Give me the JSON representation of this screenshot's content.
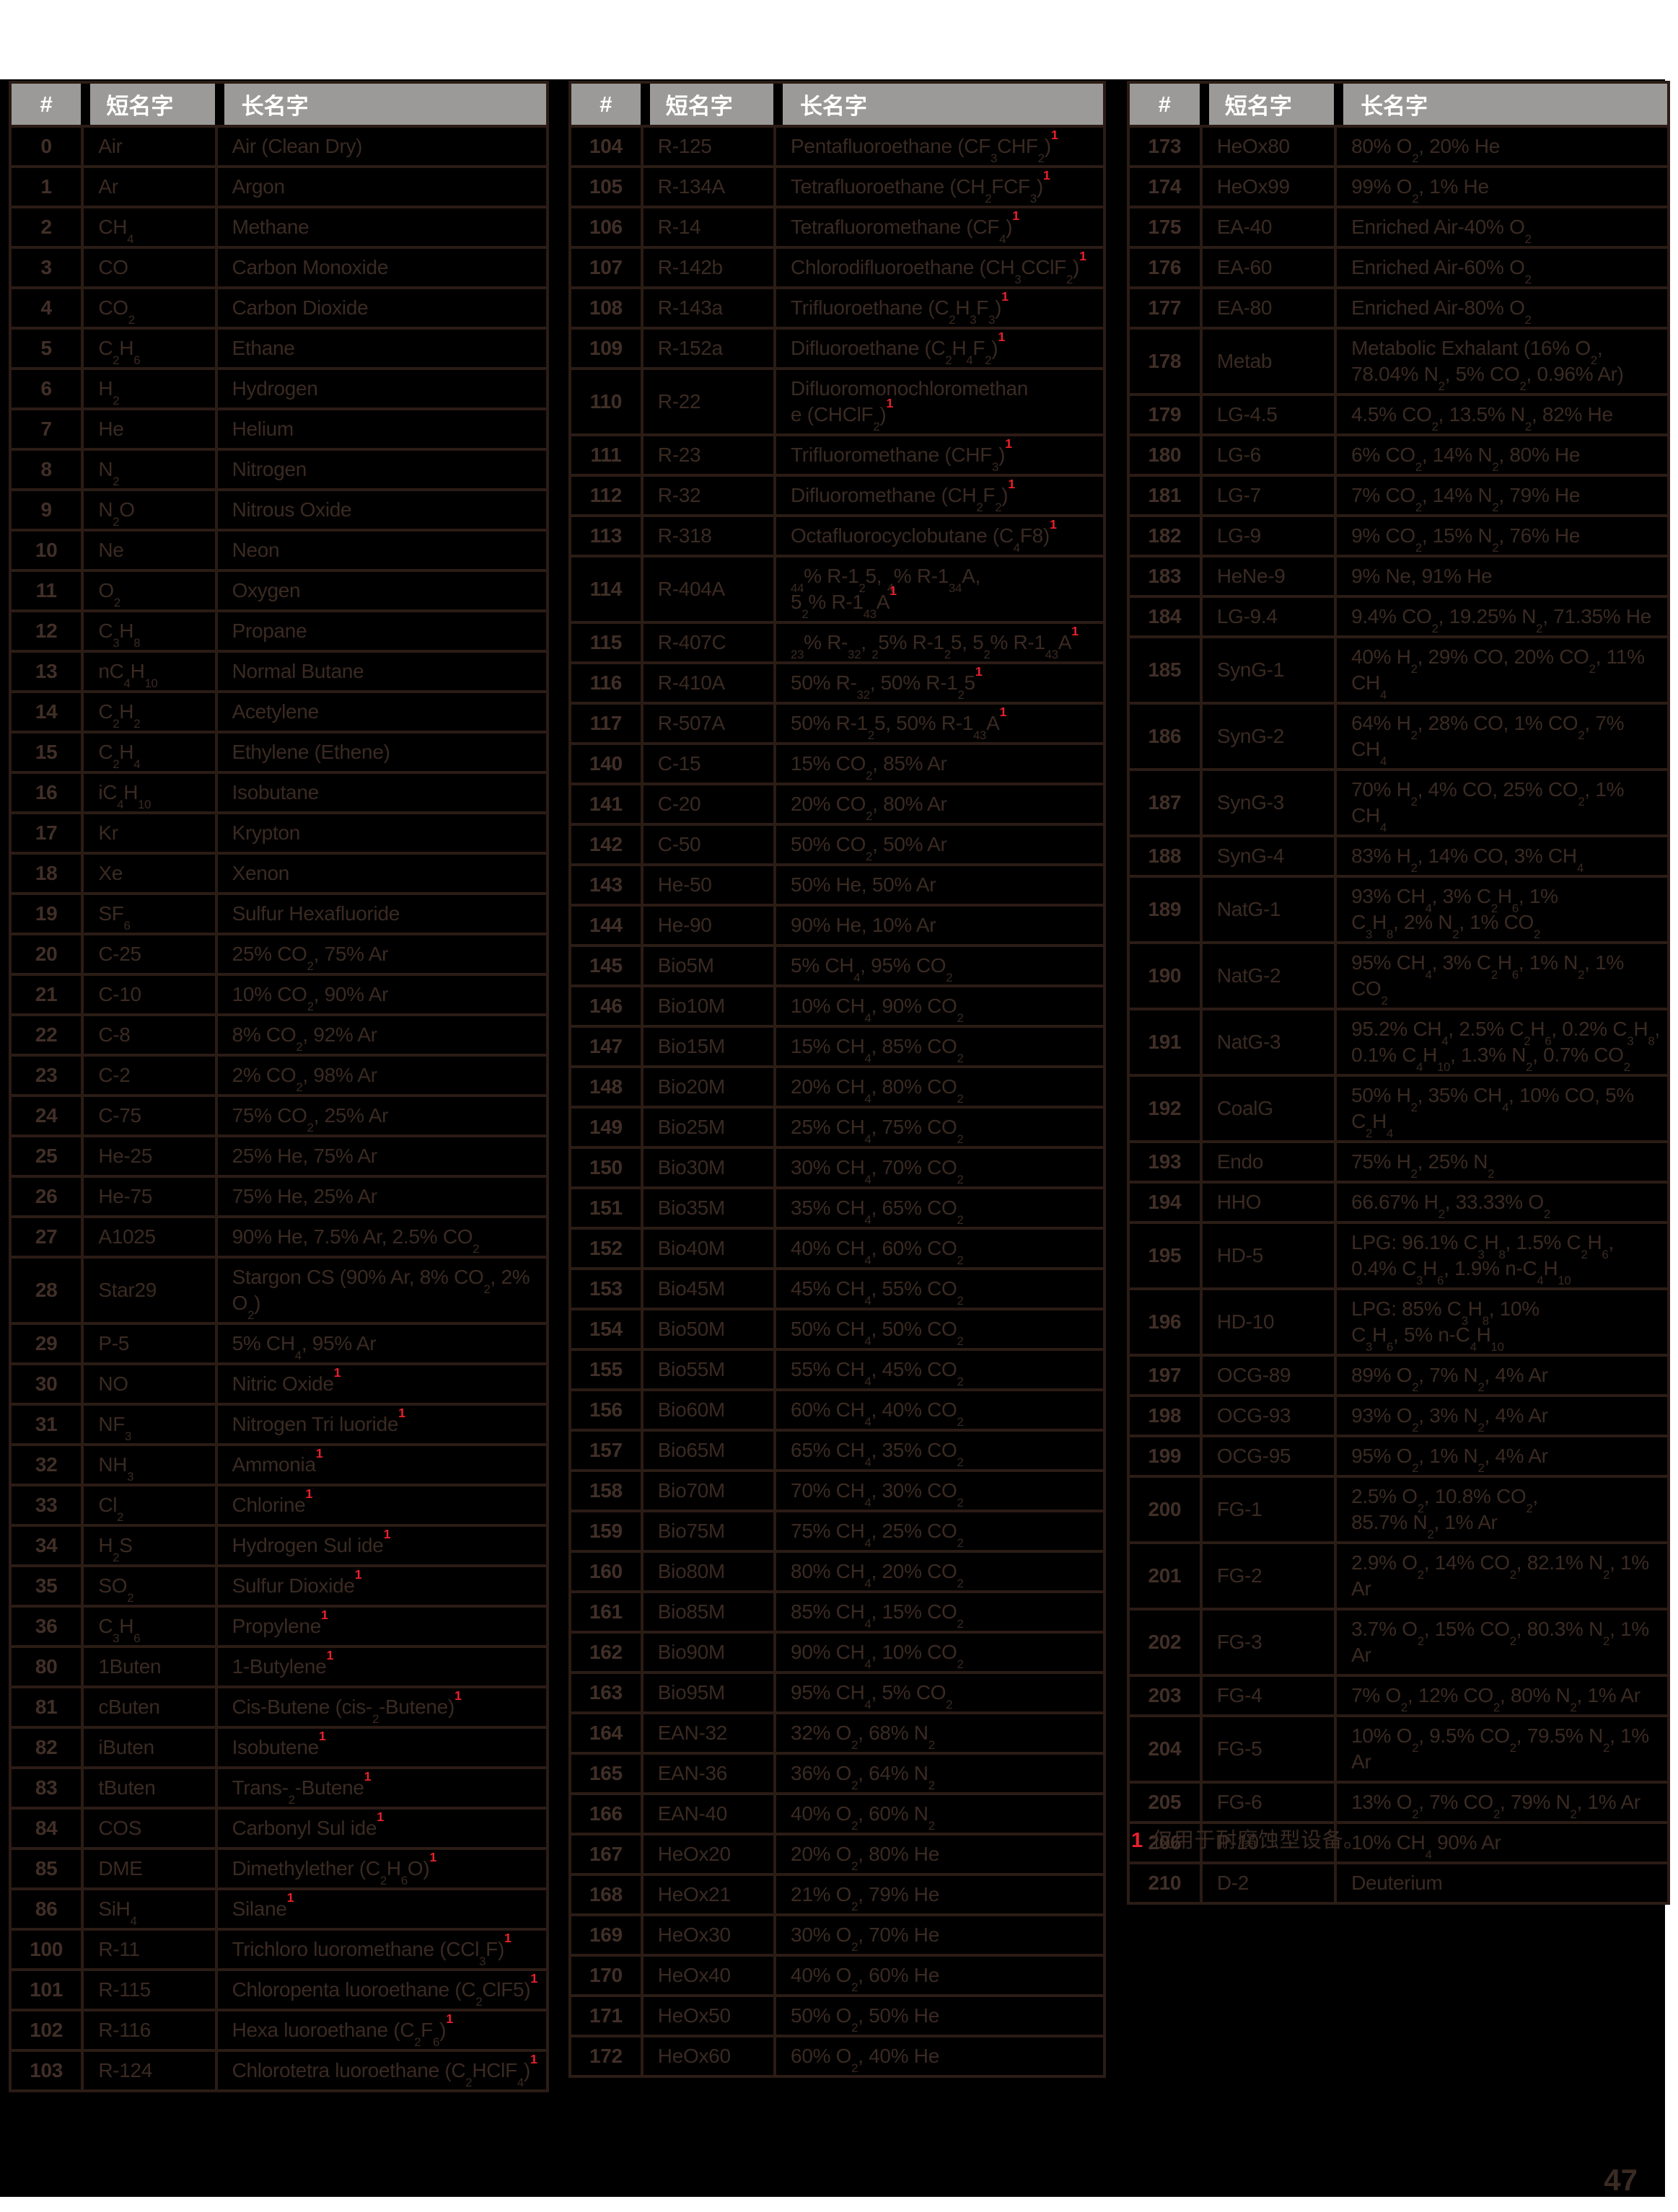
{
  "page": {
    "number": "47"
  },
  "columns": {
    "num": "#",
    "short": "短名字",
    "long": "长名字"
  },
  "footnote": {
    "marker": "1",
    "text": "仅用于耐腐蚀型设备。"
  },
  "colors": {
    "header_bg": "#9b9a98",
    "band_bg": "#000000",
    "line": "#2b1c15",
    "body_text": "#3a2a22",
    "num_text": "#412f27",
    "accent_red": "#e8212b",
    "page_num": "#3a2b23"
  },
  "tables": [
    {
      "rows": [
        [
          "0",
          "Air",
          "Air (Clean Dry)"
        ],
        [
          "1",
          "Ar",
          "Argon"
        ],
        [
          "2",
          "CH~4~",
          "Methane"
        ],
        [
          "3",
          "CO",
          "Carbon Monoxide"
        ],
        [
          "4",
          "CO~2~",
          "Carbon Dioxide"
        ],
        [
          "5",
          "C~2~H~6~",
          "Ethane"
        ],
        [
          "6",
          "H~2~",
          "Hydrogen"
        ],
        [
          "7",
          "He",
          "Helium"
        ],
        [
          "8",
          "N~2~",
          "Nitrogen"
        ],
        [
          "9",
          "N~2~O",
          "Nitrous Oxide"
        ],
        [
          "10",
          "Ne",
          "Neon"
        ],
        [
          "11",
          "O~2~",
          "Oxygen"
        ],
        [
          "12",
          "C~3~H~8~",
          "Propane"
        ],
        [
          "13",
          "nC~4~H~10~",
          "Normal Butane"
        ],
        [
          "14",
          "C~2~H~2~",
          "Acetylene"
        ],
        [
          "15",
          "C~2~H~4~",
          "Ethylene (Ethene)"
        ],
        [
          "16",
          "iC~4~H~10~",
          "Isobutane"
        ],
        [
          "17",
          "Kr",
          "Krypton"
        ],
        [
          "18",
          "Xe",
          "Xenon"
        ],
        [
          "19",
          "SF~6~",
          "Sulfur Hexafluoride"
        ],
        [
          "20",
          "C-25",
          "25% CO~2~, 75% Ar"
        ],
        [
          "21",
          "C-10",
          "10% CO~2~, 90% Ar"
        ],
        [
          "22",
          "C-8",
          "8% CO~2~, 92% Ar"
        ],
        [
          "23",
          "C-2",
          "2% CO~2~, 98% Ar"
        ],
        [
          "24",
          "C-75",
          "75% CO~2~, 25% Ar"
        ],
        [
          "25",
          "He-25",
          "25% He, 75% Ar"
        ],
        [
          "26",
          "He-75",
          "75% He, 25% Ar"
        ],
        [
          "27",
          "A1025",
          "90% He, 7.5% Ar, 2.5% CO~2~"
        ],
        [
          "28",
          "Star29",
          "Stargon CS (90% Ar, 8% CO~2~, 2% O~2~)"
        ],
        [
          "29",
          "P-5",
          "5% CH~4~, 95% Ar"
        ],
        [
          "30",
          "NO",
          "Nitric Oxide^1^"
        ],
        [
          "31",
          "NF~3~",
          "Nitrogen Tri luoride^1^"
        ],
        [
          "32",
          "NH~3~",
          "Ammonia^1^"
        ],
        [
          "33",
          "Cl~2~",
          "Chlorine^1^"
        ],
        [
          "34",
          "H~2~S",
          "Hydrogen Sul ide^1^"
        ],
        [
          "35",
          "SO~2~",
          "Sulfur Dioxide^1^"
        ],
        [
          "36",
          "C~3~H~6~",
          "Propylene^1^"
        ],
        [
          "80",
          "1Buten",
          "1-Butylene^1^"
        ],
        [
          "81",
          "cButen",
          "Cis-Butene (cis-~2~-Butene)^1^"
        ],
        [
          "82",
          "iButen",
          "Isobutene^1^"
        ],
        [
          "83",
          "tButen",
          "Trans-~2~-Butene^1^"
        ],
        [
          "84",
          "COS",
          "Carbonyl Sul ide^1^"
        ],
        [
          "85",
          "DME",
          "Dimethylether (C~2~H~6~O)^1^"
        ],
        [
          "86",
          "SiH~4~",
          "Silane^1^"
        ],
        [
          "100",
          "R-11",
          "Trichloro luoromethane (CCl~3~F)^1^"
        ],
        [
          "101",
          "R-115",
          "Chloropenta luoroethane (C~2~ClF5)^1^"
        ],
        [
          "102",
          "R-116",
          "Hexa luoroethane (C~2~F~6~)^1^"
        ],
        [
          "103",
          "R-124",
          "Chlorotetra luoroethane (C~2~HClF~4~)^1^"
        ]
      ]
    },
    {
      "rows": [
        [
          "104",
          "R-125",
          "Pentafluoroethane (CF~3~CHF~2~)^1^"
        ],
        [
          "105",
          "R-134A",
          "Tetrafluoroethane (CH~2~FCF~3~)^1^"
        ],
        [
          "106",
          "R-14",
          "Tetrafluoromethane (CF~4~)^1^"
        ],
        [
          "107",
          "R-142b",
          "Chlorodifluoroethane (CH~3~CClF~2~)^1^"
        ],
        [
          "108",
          "R-143a",
          "Trifluoroethane (C~2~H~3~F~3~)^1^"
        ],
        [
          "109",
          "R-152a",
          "Difluoroethane (C~2~H~4~F~2~)^1^"
        ],
        [
          "110",
          "R-22",
          "Difluoromonochloromethan\ne (CHClF~2~)^1^"
        ],
        [
          "111",
          "R-23",
          "Trifluoromethane (CHF~3~)^1^"
        ],
        [
          "112",
          "R-32",
          "Difluoromethane (CH~2~F~2~)^1^"
        ],
        [
          "113",
          "R-318",
          "Octafluorocyclobutane (C~4~F8)^1^"
        ],
        [
          "114",
          "R-404A",
          "~44~% R-1~2~5, ~4~% R-1~34~A,\n5~2~% R-1~43~A^1^"
        ],
        [
          "115",
          "R-407C",
          "~23~% R-~32~, ~2~5% R-1~2~5, 5~2~% R-1~43~A^1^"
        ],
        [
          "116",
          "R-410A",
          "50% R-~32~, 50% R-1~2~5^1^"
        ],
        [
          "117",
          "R-507A",
          "50% R-1~2~5, 50% R-1~43~A^1^"
        ],
        [
          "140",
          "C-15",
          "15% CO~2~, 85% Ar"
        ],
        [
          "141",
          "C-20",
          "20% CO~2~, 80% Ar"
        ],
        [
          "142",
          "C-50",
          "50% CO~2~, 50% Ar"
        ],
        [
          "143",
          "He-50",
          "50% He, 50% Ar"
        ],
        [
          "144",
          "He-90",
          "90% He, 10% Ar"
        ],
        [
          "145",
          "Bio5M",
          "5% CH~4~, 95% CO~2~"
        ],
        [
          "146",
          "Bio10M",
          "10% CH~4~, 90% CO~2~"
        ],
        [
          "147",
          "Bio15M",
          "15% CH~4~, 85% CO~2~"
        ],
        [
          "148",
          "Bio20M",
          "20% CH~4~, 80% CO~2~"
        ],
        [
          "149",
          "Bio25M",
          "25% CH~4~, 75% CO~2~"
        ],
        [
          "150",
          "Bio30M",
          "30% CH~4~, 70% CO~2~"
        ],
        [
          "151",
          "Bio35M",
          "35% CH~4~, 65% CO~2~"
        ],
        [
          "152",
          "Bio40M",
          "40% CH~4~, 60% CO~2~"
        ],
        [
          "153",
          "Bio45M",
          "45% CH~4~, 55% CO~2~"
        ],
        [
          "154",
          "Bio50M",
          "50% CH~4~, 50% CO~2~"
        ],
        [
          "155",
          "Bio55M",
          "55% CH~4~, 45% CO~2~"
        ],
        [
          "156",
          "Bio60M",
          "60% CH~4~, 40% CO~2~"
        ],
        [
          "157",
          "Bio65M",
          "65% CH~4~, 35% CO~2~"
        ],
        [
          "158",
          "Bio70M",
          "70% CH~4~, 30% CO~2~"
        ],
        [
          "159",
          "Bio75M",
          "75% CH~4~, 25% CO~2~"
        ],
        [
          "160",
          "Bio80M",
          "80% CH~4~, 20% CO~2~"
        ],
        [
          "161",
          "Bio85M",
          "85% CH~4~, 15% CO~2~"
        ],
        [
          "162",
          "Bio90M",
          "90% CH~4~, 10% CO~2~"
        ],
        [
          "163",
          "Bio95M",
          "95% CH~4~, 5% CO~2~"
        ],
        [
          "164",
          "EAN-32",
          "32% O~2~, 68% N~2~"
        ],
        [
          "165",
          "EAN-36",
          "36% O~2~, 64% N~2~"
        ],
        [
          "166",
          "EAN-40",
          "40% O~2~, 60% N~2~"
        ],
        [
          "167",
          "HeOx20",
          "20% O~2~, 80% He"
        ],
        [
          "168",
          "HeOx21",
          "21% O~2~, 79% He"
        ],
        [
          "169",
          "HeOx30",
          "30% O~2~, 70% He"
        ],
        [
          "170",
          "HeOx40",
          "40% O~2~, 60% He"
        ],
        [
          "171",
          "HeOx50",
          "50% O~2~, 50% He"
        ],
        [
          "172",
          "HeOx60",
          "60% O~2~, 40% He"
        ]
      ]
    },
    {
      "rows": [
        [
          "173",
          "HeOx80",
          "80% O~2~, 20% He"
        ],
        [
          "174",
          "HeOx99",
          "99% O~2~, 1% He"
        ],
        [
          "175",
          "EA-40",
          "Enriched Air-40% O~2~"
        ],
        [
          "176",
          "EA-60",
          "Enriched Air-60% O~2~"
        ],
        [
          "177",
          "EA-80",
          "Enriched Air-80% O~2~"
        ],
        [
          "178",
          "Metab",
          "Metabolic Exhalant (16% O~2~,\n78.04% N~2~, 5% CO~2~, 0.96% Ar)"
        ],
        [
          "179",
          "LG-4.5",
          "4.5% CO~2~, 13.5% N~2~, 82% He"
        ],
        [
          "180",
          "LG-6",
          "6% CO~2~, 14% N~2~, 80% He"
        ],
        [
          "181",
          "LG-7",
          "7% CO~2~, 14% N~2~, 79% He"
        ],
        [
          "182",
          "LG-9",
          "9% CO~2~, 15% N~2~, 76% He"
        ],
        [
          "183",
          "HeNe-9",
          "9% Ne, 91% He"
        ],
        [
          "184",
          "LG-9.4",
          "9.4% CO~2~, 19.25% N~2~, 71.35% He"
        ],
        [
          "185",
          "SynG-1",
          "40% H~2~, 29% CO, 20% CO~2~, 11% CH~4~"
        ],
        [
          "186",
          "SynG-2",
          "64% H~2~, 28% CO, 1% CO~2~, 7% CH~4~"
        ],
        [
          "187",
          "SynG-3",
          "70% H~2~, 4% CO, 25% CO~2~, 1% CH~4~"
        ],
        [
          "188",
          "SynG-4",
          "83% H~2~, 14% CO, 3% CH~4~"
        ],
        [
          "189",
          "NatG-1",
          "93% CH~4~, 3% C~2~H~6~, 1%\nC~3~H~8~, 2% N~2~, 1% CO~2~"
        ],
        [
          "190",
          "NatG-2",
          "95% CH~4~, 3% C~2~H~6~, 1% N~2~, 1% CO~2~"
        ],
        [
          "191",
          "NatG-3",
          "95.2% CH~4~, 2.5% C~2~H~6~, 0.2% C~3~H~8~,\n0.1% C~4~H~10~, 1.3% N~2~, 0.7% CO~2~"
        ],
        [
          "192",
          "CoalG",
          "50% H~2~, 35% CH~4~, 10% CO, 5% C~2~H~4~"
        ],
        [
          "193",
          "Endo",
          "75% H~2~, 25% N~2~"
        ],
        [
          "194",
          "HHO",
          "66.67% H~2~, 33.33% O~2~"
        ],
        [
          "195",
          "HD-5",
          "LPG: 96.1% C~3~H~8~, 1.5% C~2~H~6~,\n0.4% C~3~H~6~, 1.9% n-C~4~H~10~"
        ],
        [
          "196",
          "HD-10",
          "LPG: 85% C~3~H~8~, 10%\nC~3~H~6~, 5% n-C~4~H~10~"
        ],
        [
          "197",
          "OCG-89",
          "89% O~2~, 7% N~2~, 4% Ar"
        ],
        [
          "198",
          "OCG-93",
          "93% O~2~, 3% N~2~, 4% Ar"
        ],
        [
          "199",
          "OCG-95",
          "95% O~2~, 1% N~2~, 4% Ar"
        ],
        [
          "200",
          "FG-1",
          "2.5% O~2~, 10.8% CO~2~,\n85.7% N~2~, 1% Ar"
        ],
        [
          "201",
          "FG-2",
          "2.9% O~2~, 14% CO~2~, 82.1% N~2~, 1% Ar"
        ],
        [
          "202",
          "FG-3",
          "3.7% O~2~, 15% CO~2~, 80.3% N~2~, 1% Ar"
        ],
        [
          "203",
          "FG-4",
          "7% O~2~, 12% CO~2~, 80% N~2~, 1% Ar"
        ],
        [
          "204",
          "FG-5",
          "10% O~2~, 9.5% CO~2~, 79.5% N~2~, 1% Ar"
        ],
        [
          "205",
          "FG-6",
          "13% O~2~, 7% CO~2~, 79% N~2~, 1% Ar"
        ],
        [
          "206",
          "P-10",
          "10% CH~4~ 90% Ar"
        ],
        [
          "210",
          "D-2",
          "Deuterium"
        ]
      ]
    }
  ]
}
